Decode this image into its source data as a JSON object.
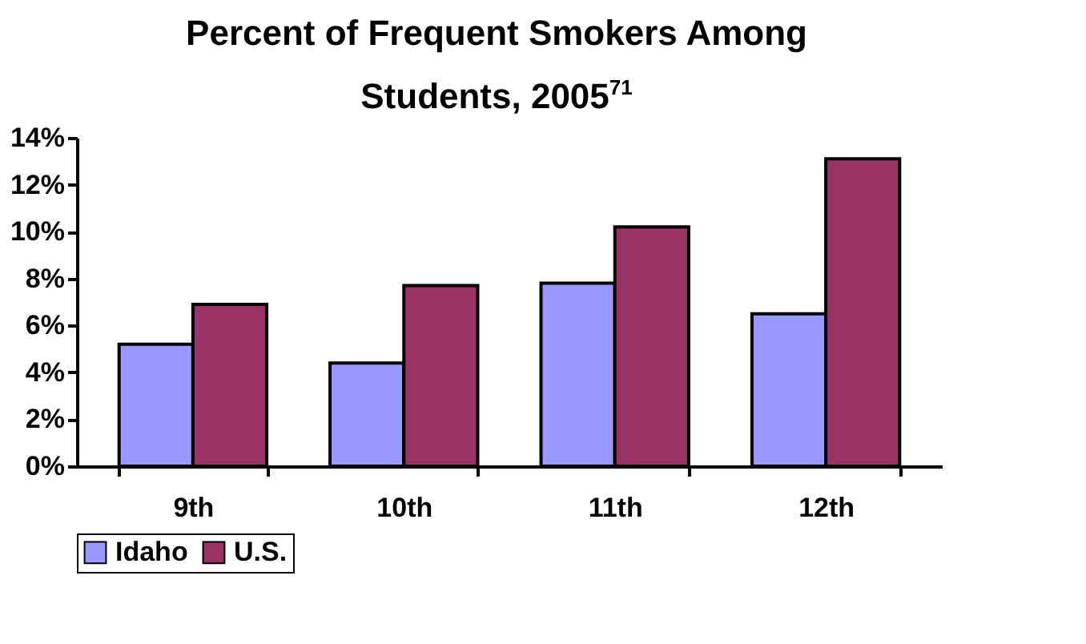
{
  "chart_data": {
    "type": "bar",
    "title": "Percent of Frequent Smokers Among Students, 2005$^{71}$",
    "categories": [
      "9th",
      "10th",
      "11th",
      "12th"
    ],
    "series": [
      {
        "name": "Idaho",
        "color": "#9999ff",
        "values": [
          5.2,
          4.4,
          7.8,
          6.5
        ]
      },
      {
        "name": "U.S.",
        "color": "#993366",
        "values": [
          6.9,
          7.7,
          10.2,
          13.1
        ]
      }
    ],
    "ylim": [
      0,
      14
    ],
    "yticks": [
      {
        "value": 0,
        "label": "0%"
      },
      {
        "value": 2,
        "label": "2%"
      },
      {
        "value": 4,
        "label": "4%"
      },
      {
        "value": 6,
        "label": "6%"
      },
      {
        "value": 8,
        "label": "8%"
      },
      {
        "value": 10,
        "label": "10%"
      },
      {
        "value": 12,
        "label": "12%"
      },
      {
        "value": 14,
        "label": "14%"
      }
    ],
    "grid": false,
    "legend": "bottom"
  }
}
